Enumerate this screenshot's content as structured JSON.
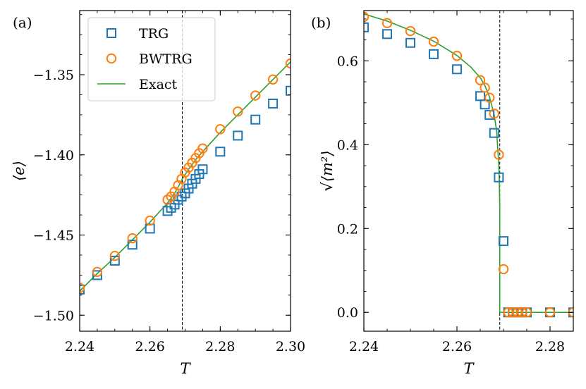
{
  "panel_labels": [
    "(a)",
    "(b)"
  ],
  "legend": {
    "placement": "top-left",
    "entries": [
      {
        "label": "TRG",
        "marker": "square",
        "color": "#1f77b4"
      },
      {
        "label": "BWTRG",
        "marker": "circle",
        "color": "#ff7f0e"
      },
      {
        "label": "Exact",
        "marker": "line",
        "color": "#2ca02c"
      }
    ]
  },
  "chart_data": [
    {
      "type": "scatter",
      "panel": "(a)",
      "xlabel": "T",
      "ylabel": "⟨e⟩",
      "xlim": [
        2.24,
        2.3
      ],
      "ylim": [
        -1.51,
        -1.31
      ],
      "xticks": [
        2.24,
        2.26,
        2.28,
        2.3
      ],
      "xtick_labels": [
        "2.24",
        "2.26",
        "2.28",
        "2.30"
      ],
      "yticks": [
        -1.5,
        -1.45,
        -1.4,
        -1.35
      ],
      "ytick_labels": [
        "−1.50",
        "−1.45",
        "−1.40",
        "−1.35"
      ],
      "vline": 2.2692,
      "grid": false,
      "series": [
        {
          "name": "TRG",
          "marker": "square",
          "x": [
            2.24,
            2.245,
            2.25,
            2.255,
            2.26,
            2.265,
            2.266,
            2.267,
            2.268,
            2.269,
            2.27,
            2.271,
            2.272,
            2.273,
            2.274,
            2.275,
            2.28,
            2.285,
            2.29,
            2.295,
            2.3
          ],
          "y": [
            -1.484,
            -1.475,
            -1.466,
            -1.456,
            -1.446,
            -1.435,
            -1.433,
            -1.431,
            -1.428,
            -1.426,
            -1.424,
            -1.421,
            -1.418,
            -1.415,
            -1.412,
            -1.409,
            -1.398,
            -1.388,
            -1.378,
            -1.368,
            -1.36
          ]
        },
        {
          "name": "BWTRG",
          "marker": "circle",
          "x": [
            2.24,
            2.245,
            2.25,
            2.255,
            2.26,
            2.265,
            2.266,
            2.267,
            2.268,
            2.269,
            2.27,
            2.271,
            2.272,
            2.273,
            2.274,
            2.275,
            2.28,
            2.285,
            2.29,
            2.295,
            2.3
          ],
          "y": [
            -1.483,
            -1.473,
            -1.463,
            -1.452,
            -1.441,
            -1.428,
            -1.426,
            -1.423,
            -1.419,
            -1.415,
            -1.411,
            -1.408,
            -1.405,
            -1.402,
            -1.399,
            -1.396,
            -1.384,
            -1.373,
            -1.363,
            -1.353,
            -1.343
          ]
        },
        {
          "name": "Exact",
          "marker": "line",
          "x": [
            2.24,
            2.245,
            2.25,
            2.255,
            2.26,
            2.265,
            2.267,
            2.269,
            2.2692,
            2.271,
            2.273,
            2.275,
            2.28,
            2.285,
            2.29,
            2.295,
            2.3
          ],
          "y": [
            -1.485,
            -1.474,
            -1.464,
            -1.453,
            -1.442,
            -1.43,
            -1.424,
            -1.416,
            -1.415,
            -1.409,
            -1.403,
            -1.398,
            -1.386,
            -1.375,
            -1.364,
            -1.353,
            -1.342
          ]
        }
      ]
    },
    {
      "type": "scatter",
      "panel": "(b)",
      "xlabel": "T",
      "ylabel": "√⟨m²⟩",
      "xlim": [
        2.24,
        2.285
      ],
      "ylim": [
        -0.045,
        0.72
      ],
      "xticks": [
        2.24,
        2.26,
        2.28
      ],
      "xtick_labels": [
        "2.24",
        "2.26",
        "2.28"
      ],
      "yticks": [
        0.0,
        0.2,
        0.4,
        0.6
      ],
      "ytick_labels": [
        "0.0",
        "0.2",
        "0.4",
        "0.6"
      ],
      "vline": 2.2692,
      "grid": false,
      "series": [
        {
          "name": "TRG",
          "marker": "square",
          "x": [
            2.24,
            2.245,
            2.25,
            2.255,
            2.26,
            2.265,
            2.266,
            2.267,
            2.268,
            2.269,
            2.27,
            2.271,
            2.272,
            2.273,
            2.274,
            2.275,
            2.28,
            2.285
          ],
          "y": [
            0.68,
            0.664,
            0.643,
            0.616,
            0.58,
            0.516,
            0.496,
            0.471,
            0.428,
            0.322,
            0.17,
            0.0,
            0.0,
            0.0,
            0.0,
            0.0,
            0.0,
            0.0
          ]
        },
        {
          "name": "BWTRG",
          "marker": "circle",
          "x": [
            2.24,
            2.245,
            2.25,
            2.255,
            2.26,
            2.265,
            2.266,
            2.267,
            2.268,
            2.269,
            2.27,
            2.271,
            2.272,
            2.273,
            2.274,
            2.275,
            2.28,
            2.285
          ],
          "y": [
            0.705,
            0.69,
            0.671,
            0.646,
            0.612,
            0.554,
            0.536,
            0.512,
            0.474,
            0.376,
            0.103,
            0.0,
            0.0,
            0.0,
            0.0,
            0.0,
            0.0,
            0.0
          ]
        },
        {
          "name": "Exact",
          "marker": "line",
          "x": [
            2.24,
            2.245,
            2.25,
            2.255,
            2.26,
            2.263,
            2.265,
            2.266,
            2.267,
            2.268,
            2.2685,
            2.269,
            2.2691,
            2.2692,
            2.2692,
            2.285
          ],
          "y": [
            0.712,
            0.695,
            0.673,
            0.647,
            0.613,
            0.585,
            0.56,
            0.541,
            0.514,
            0.471,
            0.435,
            0.352,
            0.31,
            0.25,
            0.0,
            0.0
          ]
        }
      ]
    }
  ]
}
